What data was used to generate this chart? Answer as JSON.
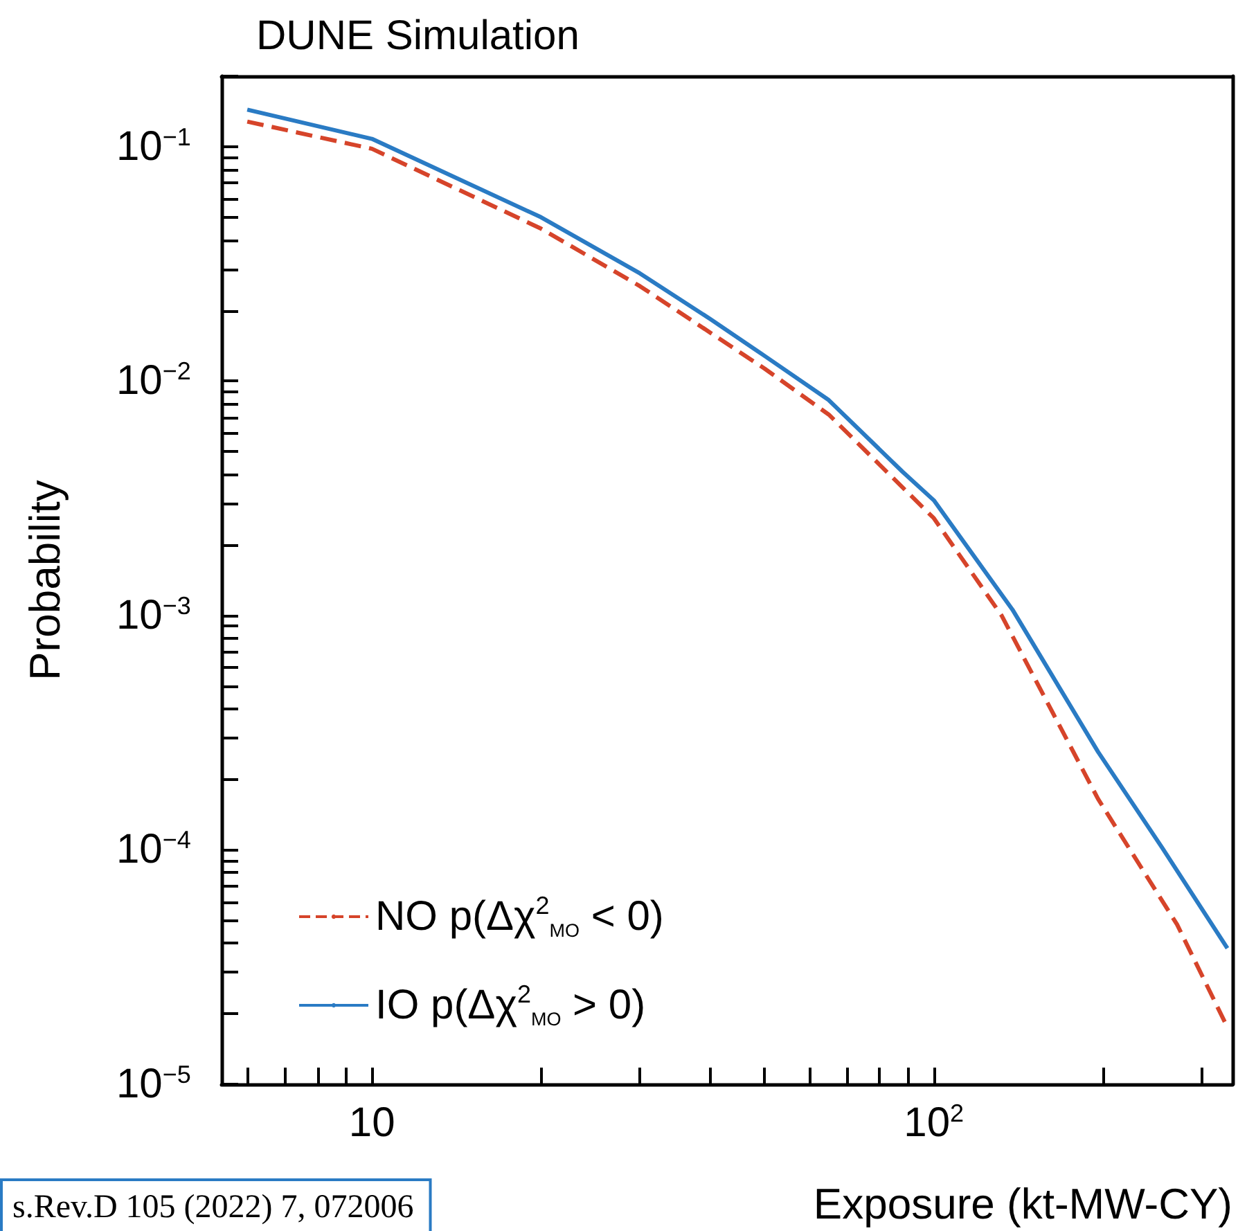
{
  "chart_data": {
    "type": "line",
    "title": "DUNE Simulation",
    "xlabel": "Exposure (kt-MW-CY)",
    "ylabel": "Probability",
    "annotations": [
      "s.Rev.D 105 (2022) 7, 072006"
    ],
    "log": "xy",
    "xlim": [
      5.4,
      340
    ],
    "ylim": [
      1e-05,
      0.2
    ],
    "xticks": [
      {
        "value": 6,
        "label": null
      },
      {
        "value": 7,
        "label": null
      },
      {
        "value": 8,
        "label": null
      },
      {
        "value": 9,
        "label": null
      },
      {
        "value": 10,
        "label": "10"
      },
      {
        "value": 20,
        "label": null
      },
      {
        "value": 30,
        "label": null
      },
      {
        "value": 40,
        "label": null
      },
      {
        "value": 50,
        "label": null
      },
      {
        "value": 60,
        "label": null
      },
      {
        "value": 70,
        "label": null
      },
      {
        "value": 80,
        "label": null
      },
      {
        "value": 90,
        "label": null
      },
      {
        "value": 100,
        "label": "10$^{2}$"
      },
      {
        "value": 200,
        "label": null
      },
      {
        "value": 300,
        "label": null
      }
    ],
    "yticks": [
      {
        "value": 1e-05,
        "label": "10$^{−5}$"
      },
      {
        "value": 2e-05,
        "label": null
      },
      {
        "value": 3e-05,
        "label": null
      },
      {
        "value": 4e-05,
        "label": null
      },
      {
        "value": 5e-05,
        "label": null
      },
      {
        "value": 6e-05,
        "label": null
      },
      {
        "value": 7e-05,
        "label": null
      },
      {
        "value": 8e-05,
        "label": null
      },
      {
        "value": 9e-05,
        "label": null
      },
      {
        "value": 0.0001,
        "label": "10$^{−4}$"
      },
      {
        "value": 0.0002,
        "label": null
      },
      {
        "value": 0.0003,
        "label": null
      },
      {
        "value": 0.0004,
        "label": null
      },
      {
        "value": 0.0005,
        "label": null
      },
      {
        "value": 0.0006,
        "label": null
      },
      {
        "value": 0.0007,
        "label": null
      },
      {
        "value": 0.0008,
        "label": null
      },
      {
        "value": 0.0009,
        "label": null
      },
      {
        "value": 0.001,
        "label": "10$^{−3}$"
      },
      {
        "value": 0.002,
        "label": null
      },
      {
        "value": 0.003,
        "label": null
      },
      {
        "value": 0.004,
        "label": null
      },
      {
        "value": 0.005,
        "label": null
      },
      {
        "value": 0.006,
        "label": null
      },
      {
        "value": 0.007,
        "label": null
      },
      {
        "value": 0.008,
        "label": null
      },
      {
        "value": 0.009,
        "label": null
      },
      {
        "value": 0.01,
        "label": "10$^{−2}$"
      },
      {
        "value": 0.02,
        "label": null
      },
      {
        "value": 0.03,
        "label": null
      },
      {
        "value": 0.04,
        "label": null
      },
      {
        "value": 0.05,
        "label": null
      },
      {
        "value": 0.06,
        "label": null
      },
      {
        "value": 0.07,
        "label": null
      },
      {
        "value": 0.08,
        "label": null
      },
      {
        "value": 0.09,
        "label": null
      },
      {
        "value": 0.1,
        "label": "10$^{−1}$"
      },
      {
        "value": 0.2,
        "label": null
      }
    ],
    "grid": false,
    "legend": "bottom left",
    "marker": "none",
    "series": [
      {
        "name": "NO p(Δχ$^{2}$$_{MO}$ < 0)",
        "color": "#d6442a",
        "line_style": "dashed",
        "x": [
          6,
          10,
          20,
          30,
          40,
          50,
          65,
          100,
          132,
          196,
          271,
          333
        ],
        "values": [
          0.128,
          0.098,
          0.0447,
          0.0254,
          0.0161,
          0.0113,
          0.0072,
          0.0026,
          0.001,
          0.000165,
          4.8e-05,
          1.75e-05
        ]
      },
      {
        "name": "IO p(Δχ$^{2}$$_{MO}$ > 0)",
        "color": "#2a7bc4",
        "line_style": "solid",
        "x": [
          6,
          10,
          20,
          30,
          40,
          50,
          65,
          88,
          100,
          138,
          196,
          255,
          333
        ],
        "values": [
          0.144,
          0.108,
          0.05,
          0.0288,
          0.0184,
          0.0128,
          0.0083,
          0.0041,
          0.0031,
          0.00106,
          0.000262,
          0.000102,
          3.8e-05
        ]
      }
    ]
  }
}
